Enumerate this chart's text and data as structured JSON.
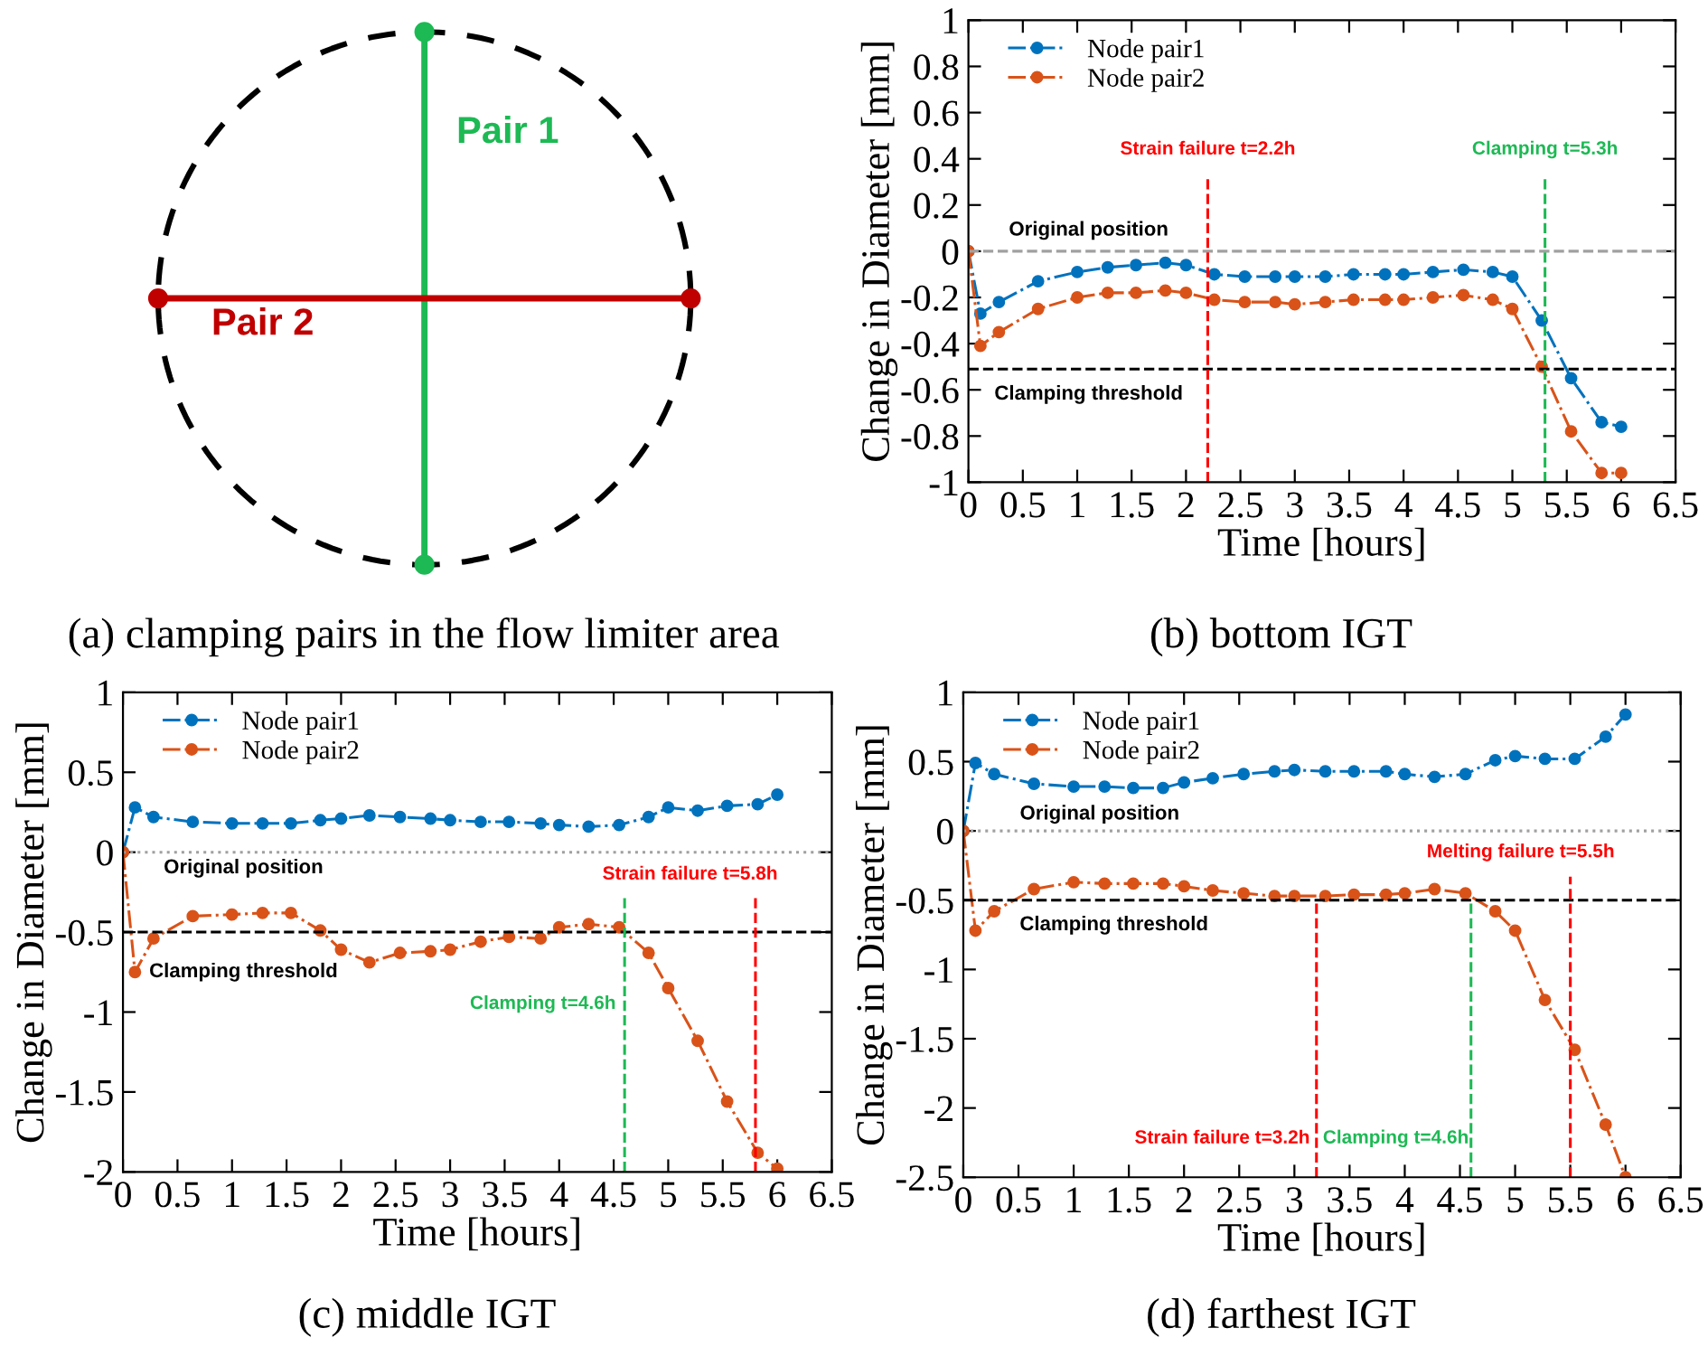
{
  "chart_data": [
    {
      "type": "other",
      "title": "(a) clamping pairs in the flow limiter area",
      "annotations": [
        "Pair 1",
        "Pair 2"
      ],
      "colors": [
        "#1db954",
        "#c00000"
      ]
    },
    {
      "type": "line",
      "title": "(b) bottom IGT",
      "xlabel": "Time [hours]",
      "ylabel": "Change in Diameter [mm]",
      "x": [
        0,
        0.11,
        0.28,
        0.64,
        1.0,
        1.28,
        1.54,
        1.81,
        2.0,
        2.26,
        2.54,
        2.82,
        3.0,
        3.28,
        3.54,
        3.83,
        4.0,
        4.27,
        4.55,
        4.82,
        5.0,
        5.27,
        5.54,
        5.82,
        6.0
      ],
      "series": [
        {
          "name": "Node pair1",
          "color": "#0072bd",
          "values": [
            0,
            -0.27,
            -0.22,
            -0.13,
            -0.09,
            -0.07,
            -0.06,
            -0.05,
            -0.06,
            -0.1,
            -0.11,
            -0.11,
            -0.11,
            -0.11,
            -0.1,
            -0.1,
            -0.1,
            -0.09,
            -0.08,
            -0.09,
            -0.11,
            -0.3,
            -0.55,
            -0.74,
            -0.76
          ]
        },
        {
          "name": "Node pair2",
          "color": "#d95319",
          "values": [
            0,
            -0.41,
            -0.35,
            -0.25,
            -0.2,
            -0.18,
            -0.18,
            -0.17,
            -0.18,
            -0.21,
            -0.22,
            -0.22,
            -0.23,
            -0.22,
            -0.21,
            -0.21,
            -0.21,
            -0.2,
            -0.19,
            -0.21,
            -0.25,
            -0.5,
            -0.78,
            -0.96,
            -0.96
          ]
        }
      ],
      "xlim": [
        0,
        6.5
      ],
      "xticks": [
        0,
        0.5,
        1,
        1.5,
        2,
        2.5,
        3,
        3.5,
        4,
        4.5,
        5,
        5.5,
        6,
        6.5
      ],
      "ylim": [
        -1,
        1
      ],
      "yticks": [
        -1,
        -0.8,
        -0.6,
        -0.4,
        -0.2,
        0,
        0.2,
        0.4,
        0.6,
        0.8,
        1
      ],
      "ref_lines": [
        {
          "axis": "y",
          "value": 0,
          "label": "Original position",
          "color": "#a0a0a0",
          "line_style": "dashed"
        },
        {
          "axis": "y",
          "value": -0.51,
          "label": "Clamping threshold",
          "color": "#000000",
          "line_style": "dashed"
        },
        {
          "axis": "x",
          "value": 2.2,
          "label": "Strain failure t=2.2h",
          "color": "#ff0000",
          "line_style": "dashed"
        },
        {
          "axis": "x",
          "value": 5.3,
          "label": "Clamping t=5.3h",
          "color": "#1db954",
          "line_style": "dashed"
        }
      ],
      "marker": "circle",
      "line_style": "dashdot",
      "legend": "top left",
      "grid": false
    },
    {
      "type": "line",
      "title": "(c) middle IGT",
      "xlabel": "Time [hours]",
      "ylabel": "Change in Diameter [mm]",
      "x": [
        0,
        0.11,
        0.28,
        0.64,
        1.0,
        1.28,
        1.54,
        1.81,
        2.0,
        2.26,
        2.54,
        2.82,
        3.0,
        3.28,
        3.54,
        3.83,
        4.0,
        4.27,
        4.55,
        4.82,
        5.0,
        5.27,
        5.54,
        5.82,
        6.0
      ],
      "series": [
        {
          "name": "Node pair1",
          "color": "#0072bd",
          "values": [
            0,
            0.28,
            0.22,
            0.19,
            0.18,
            0.18,
            0.18,
            0.2,
            0.21,
            0.23,
            0.22,
            0.21,
            0.2,
            0.19,
            0.19,
            0.18,
            0.17,
            0.16,
            0.17,
            0.22,
            0.28,
            0.26,
            0.29,
            0.3,
            0.36
          ]
        },
        {
          "name": "Node pair2",
          "color": "#d95319",
          "values": [
            0,
            -0.75,
            -0.54,
            -0.4,
            -0.39,
            -0.38,
            -0.38,
            -0.49,
            -0.61,
            -0.69,
            -0.63,
            -0.62,
            -0.61,
            -0.56,
            -0.53,
            -0.54,
            -0.47,
            -0.45,
            -0.47,
            -0.63,
            -0.85,
            -1.18,
            -1.56,
            -1.88,
            -1.98
          ]
        }
      ],
      "xlim": [
        0,
        6.5
      ],
      "xticks": [
        0,
        0.5,
        1,
        1.5,
        2,
        2.5,
        3,
        3.5,
        4,
        4.5,
        5,
        5.5,
        6,
        6.5
      ],
      "ylim": [
        -2,
        1
      ],
      "yticks": [
        -2,
        -1.5,
        -1,
        -0.5,
        0,
        0.5,
        1
      ],
      "ref_lines": [
        {
          "axis": "y",
          "value": 0,
          "label": "Original position",
          "color": "#a0a0a0",
          "line_style": "dotted"
        },
        {
          "axis": "y",
          "value": -0.5,
          "label": "Clamping threshold",
          "color": "#000000",
          "line_style": "dashed"
        },
        {
          "axis": "x",
          "value": 4.6,
          "label": "Clamping t=4.6h",
          "color": "#1db954",
          "line_style": "dashed"
        },
        {
          "axis": "x",
          "value": 5.8,
          "label": "Strain failure t=5.8h",
          "color": "#ff0000",
          "line_style": "dashed"
        }
      ],
      "marker": "circle",
      "line_style": "dashdot",
      "legend": "top left",
      "grid": false
    },
    {
      "type": "line",
      "title": "(d) farthest IGT",
      "xlabel": "Time [hours]",
      "ylabel": "Change in Diameter [mm]",
      "x": [
        0,
        0.11,
        0.28,
        0.64,
        1.0,
        1.28,
        1.54,
        1.81,
        2.0,
        2.26,
        2.54,
        2.82,
        3.0,
        3.28,
        3.54,
        3.83,
        4.0,
        4.27,
        4.55,
        4.82,
        5.0,
        5.27,
        5.54,
        5.82,
        6.0
      ],
      "series": [
        {
          "name": "Node pair1",
          "color": "#0072bd",
          "values": [
            0,
            0.49,
            0.41,
            0.34,
            0.32,
            0.32,
            0.31,
            0.31,
            0.35,
            0.38,
            0.41,
            0.43,
            0.44,
            0.43,
            0.43,
            0.43,
            0.41,
            0.39,
            0.41,
            0.51,
            0.54,
            0.52,
            0.52,
            0.68,
            0.84
          ]
        },
        {
          "name": "Node pair2",
          "color": "#d95319",
          "values": [
            0,
            -0.72,
            -0.58,
            -0.42,
            -0.37,
            -0.38,
            -0.38,
            -0.38,
            -0.4,
            -0.43,
            -0.45,
            -0.47,
            -0.47,
            -0.47,
            -0.46,
            -0.46,
            -0.45,
            -0.42,
            -0.45,
            -0.58,
            -0.72,
            -1.22,
            -1.58,
            -2.12,
            -2.5
          ]
        }
      ],
      "xlim": [
        0,
        6.5
      ],
      "xticks": [
        0,
        0.5,
        1,
        1.5,
        2,
        2.5,
        3,
        3.5,
        4,
        4.5,
        5,
        5.5,
        6,
        6.5
      ],
      "ylim": [
        -2.5,
        1
      ],
      "yticks": [
        -2.5,
        -2,
        -1.5,
        -1,
        -0.5,
        0,
        0.5,
        1
      ],
      "ref_lines": [
        {
          "axis": "y",
          "value": 0,
          "label": "Original position",
          "color": "#a0a0a0",
          "line_style": "dotted"
        },
        {
          "axis": "y",
          "value": -0.5,
          "label": "Clamping threshold",
          "color": "#000000",
          "line_style": "dashed"
        },
        {
          "axis": "x",
          "value": 3.2,
          "label": "Strain failure t=3.2h",
          "color": "#ff0000",
          "line_style": "dashed"
        },
        {
          "axis": "x",
          "value": 4.6,
          "label": "Clamping t=4.6h",
          "color": "#1db954",
          "line_style": "dashed"
        },
        {
          "axis": "x",
          "value": 5.5,
          "label": "Melting failure t=5.5h",
          "color": "#ff0000",
          "line_style": "dashed"
        }
      ],
      "marker": "circle",
      "line_style": "dashdot",
      "legend": "top left",
      "grid": false
    }
  ]
}
